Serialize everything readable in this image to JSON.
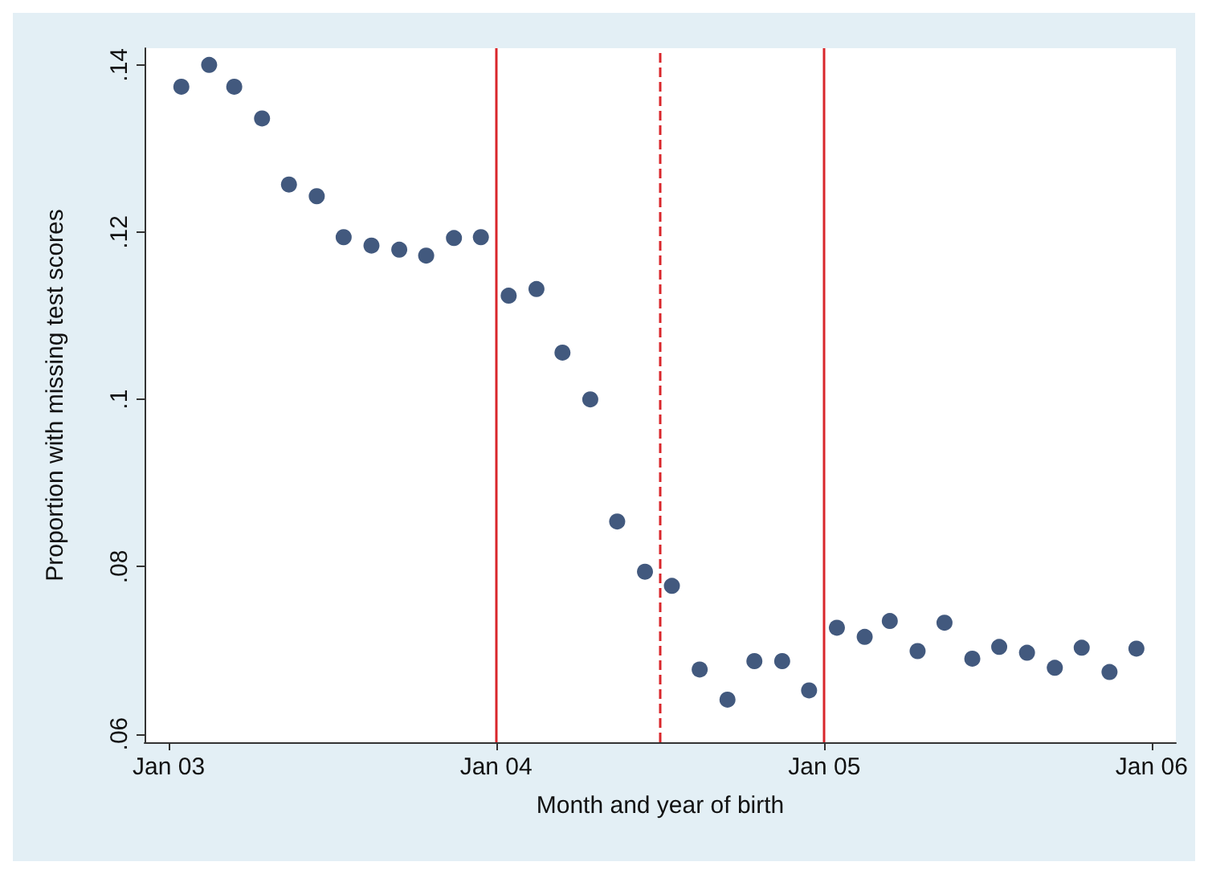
{
  "chart_data": {
    "type": "scatter",
    "xlabel": "Month and year of birth",
    "ylabel": "Proportion with missing test scores",
    "x": [
      "2003-01-15",
      "2003-02-15",
      "2003-03-15",
      "2003-04-15",
      "2003-05-15",
      "2003-06-15",
      "2003-07-15",
      "2003-08-15",
      "2003-09-15",
      "2003-10-15",
      "2003-11-15",
      "2003-12-15",
      "2004-01-15",
      "2004-02-15",
      "2004-03-15",
      "2004-04-15",
      "2004-05-15",
      "2004-06-15",
      "2004-07-15",
      "2004-08-15",
      "2004-09-15",
      "2004-10-15",
      "2004-11-15",
      "2004-12-15",
      "2005-01-15",
      "2005-02-15",
      "2005-03-15",
      "2005-04-15",
      "2005-05-15",
      "2005-06-15",
      "2005-07-15",
      "2005-08-15",
      "2005-09-15",
      "2005-10-15",
      "2005-11-15",
      "2005-12-15"
    ],
    "series": [
      {
        "color": "#13305e",
        "values": [
          0.1374,
          0.14,
          0.1374,
          0.1336,
          0.1257,
          0.1243,
          0.1194,
          0.1184,
          0.1179,
          0.1172,
          0.1193,
          0.1194,
          0.1124,
          0.1132,
          0.1056,
          0.1,
          0.0854,
          0.0794,
          0.0777,
          0.0677,
          0.0641,
          0.0687,
          0.0687,
          0.0652,
          0.0727,
          0.0716,
          0.0735,
          0.0699,
          0.0733,
          0.069,
          0.0704,
          0.0697,
          0.0679,
          0.0703,
          0.0674,
          0.0702
        ]
      }
    ],
    "xlim": [
      "2002-12-05",
      "2006-01-28"
    ],
    "xticks": [
      {
        "value": "2003-01-01",
        "label": "Jan 03"
      },
      {
        "value": "2004-01-01",
        "label": "Jan 04"
      },
      {
        "value": "2005-01-01",
        "label": "Jan 05"
      },
      {
        "value": "2006-01-01",
        "label": "Jan 06"
      }
    ],
    "ylim": [
      0.059,
      0.142
    ],
    "yticks": [
      {
        "value": 0.06,
        "label": ".06"
      },
      {
        "value": 0.08,
        "label": ".08"
      },
      {
        "value": 0.1,
        "label": ".1"
      },
      {
        "value": 0.12,
        "label": ".12"
      },
      {
        "value": 0.14,
        "label": ".14"
      }
    ],
    "ref_lines": [
      {
        "axis": "x",
        "value": "2004-01-01",
        "color": "#d9262b",
        "line_style": "solid"
      },
      {
        "axis": "x",
        "value": "2004-07-01",
        "color": "#d9262b",
        "line_style": "dashed"
      },
      {
        "axis": "x",
        "value": "2005-01-01",
        "color": "#d9262b",
        "line_style": "solid"
      }
    ],
    "grid": false,
    "marker": "circle"
  }
}
